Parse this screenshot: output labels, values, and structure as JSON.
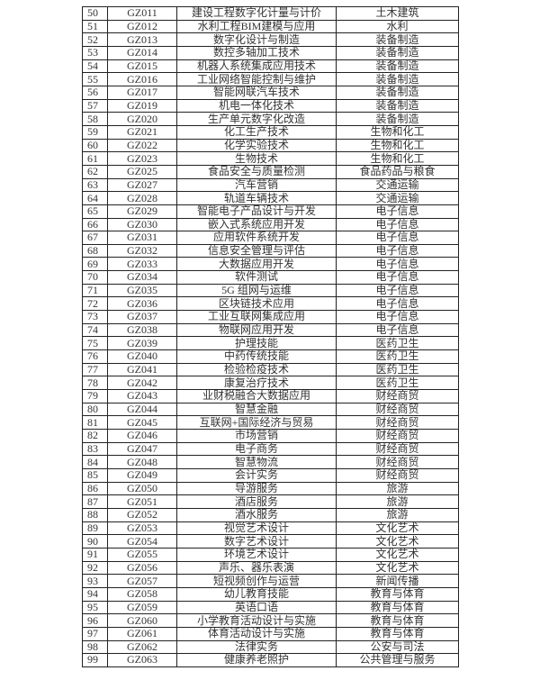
{
  "rows": [
    [
      "50",
      "GZ011",
      "建设工程数字化计量与计价",
      "土木建筑"
    ],
    [
      "51",
      "GZ012",
      "水利工程BIM建模与应用",
      "水利"
    ],
    [
      "52",
      "GZ013",
      "数字化设计与制造",
      "装备制造"
    ],
    [
      "53",
      "GZ014",
      "数控多轴加工技术",
      "装备制造"
    ],
    [
      "54",
      "GZ015",
      "机器人系统集成应用技术",
      "装备制造"
    ],
    [
      "55",
      "GZ016",
      "工业网络智能控制与维护",
      "装备制造"
    ],
    [
      "56",
      "GZ017",
      "智能网联汽车技术",
      "装备制造"
    ],
    [
      "57",
      "GZ019",
      "机电一体化技术",
      "装备制造"
    ],
    [
      "58",
      "GZ020",
      "生产单元数字化改造",
      "装备制造"
    ],
    [
      "59",
      "GZ021",
      "化工生产技术",
      "生物和化工"
    ],
    [
      "60",
      "GZ022",
      "化学实验技术",
      "生物和化工"
    ],
    [
      "61",
      "GZ023",
      "生物技术",
      "生物和化工"
    ],
    [
      "62",
      "GZ025",
      "食品安全与质量检测",
      "食品药品与粮食"
    ],
    [
      "63",
      "GZ027",
      "汽车营销",
      "交通运输"
    ],
    [
      "64",
      "GZ028",
      "轨道车辆技术",
      "交通运输"
    ],
    [
      "65",
      "GZ029",
      "智能电子产品设计与开发",
      "电子信息"
    ],
    [
      "66",
      "GZ030",
      "嵌入式系统应用开发",
      "电子信息"
    ],
    [
      "67",
      "GZ031",
      "应用软件系统开发",
      "电子信息"
    ],
    [
      "68",
      "GZ032",
      "信息安全管理与评估",
      "电子信息"
    ],
    [
      "69",
      "GZ033",
      "大数据应用开发",
      "电子信息"
    ],
    [
      "70",
      "GZ034",
      "软件测试",
      "电子信息"
    ],
    [
      "71",
      "GZ035",
      "5G 组网与运维",
      "电子信息"
    ],
    [
      "72",
      "GZ036",
      "区块链技术应用",
      "电子信息"
    ],
    [
      "73",
      "GZ037",
      "工业互联网集成应用",
      "电子信息"
    ],
    [
      "74",
      "GZ038",
      "物联网应用开发",
      "电子信息"
    ],
    [
      "75",
      "GZ039",
      "护理技能",
      "医药卫生"
    ],
    [
      "76",
      "GZ040",
      "中药传统技能",
      "医药卫生"
    ],
    [
      "77",
      "GZ041",
      "检验检疫技术",
      "医药卫生"
    ],
    [
      "78",
      "GZ042",
      "康复治疗技术",
      "医药卫生"
    ],
    [
      "79",
      "GZ043",
      "业财税融合大数据应用",
      "财经商贸"
    ],
    [
      "80",
      "GZ044",
      "智慧金融",
      "财经商贸"
    ],
    [
      "81",
      "GZ045",
      "互联网+国际经济与贸易",
      "财经商贸"
    ],
    [
      "82",
      "GZ046",
      "市场营销",
      "财经商贸"
    ],
    [
      "83",
      "GZ047",
      "电子商务",
      "财经商贸"
    ],
    [
      "84",
      "GZ048",
      "智慧物流",
      "财经商贸"
    ],
    [
      "85",
      "GZ049",
      "会计实务",
      "财经商贸"
    ],
    [
      "86",
      "GZ050",
      "导游服务",
      "旅游"
    ],
    [
      "87",
      "GZ051",
      "酒店服务",
      "旅游"
    ],
    [
      "88",
      "GZ052",
      "酒水服务",
      "旅游"
    ],
    [
      "89",
      "GZ053",
      "视觉艺术设计",
      "文化艺术"
    ],
    [
      "90",
      "GZ054",
      "数字艺术设计",
      "文化艺术"
    ],
    [
      "91",
      "GZ055",
      "环境艺术设计",
      "文化艺术"
    ],
    [
      "92",
      "GZ056",
      "声乐、器乐表演",
      "文化艺术"
    ],
    [
      "93",
      "GZ057",
      "短视频创作与运营",
      "新闻传播"
    ],
    [
      "94",
      "GZ058",
      "幼儿教育技能",
      "教育与体育"
    ],
    [
      "95",
      "GZ059",
      "英语口语",
      "教育与体育"
    ],
    [
      "96",
      "GZ060",
      "小学教育活动设计与实施",
      "教育与体育"
    ],
    [
      "97",
      "GZ061",
      "体育活动设计与实施",
      "教育与体育"
    ],
    [
      "98",
      "GZ062",
      "法律实务",
      "公安与司法"
    ],
    [
      "99",
      "GZ063",
      "健康养老照护",
      "公共管理与服务"
    ]
  ]
}
